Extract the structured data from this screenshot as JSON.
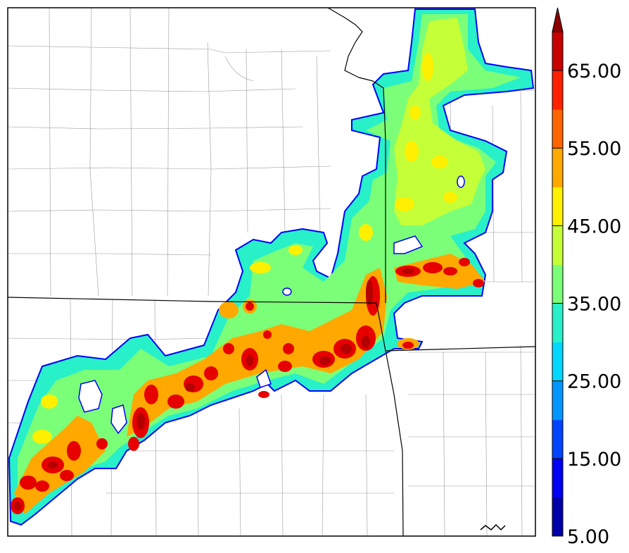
{
  "map": {
    "title": "",
    "colorbar": {
      "min": 5,
      "max": 70,
      "step": 5,
      "extend": "max",
      "tick_values": [
        5,
        15,
        25,
        35,
        45,
        55,
        65
      ],
      "tick_labels": [
        "5.00",
        "15.00",
        "25.00",
        "35.00",
        "45.00",
        "55.00",
        "65.00"
      ],
      "colors": [
        "#0000a8",
        "#0000f2",
        "#0044ff",
        "#0096ff",
        "#00d8ff",
        "#28f0c8",
        "#7cff78",
        "#c4ff38",
        "#fff000",
        "#ffa800",
        "#ff6400",
        "#ff2000",
        "#c80000",
        "#8c0000"
      ]
    },
    "field_colors": {
      "edge": "#0000ff",
      "low": "#28f0c8",
      "mid": "#7cff78",
      "mid_high": "#c4ff38",
      "high": "#fff000",
      "orange": "#ffa800",
      "red_orange": "#ff3c00",
      "red": "#e60000",
      "dark_red": "#b40000",
      "state_line": "#000000",
      "county_line": "#9a9a9a"
    }
  }
}
